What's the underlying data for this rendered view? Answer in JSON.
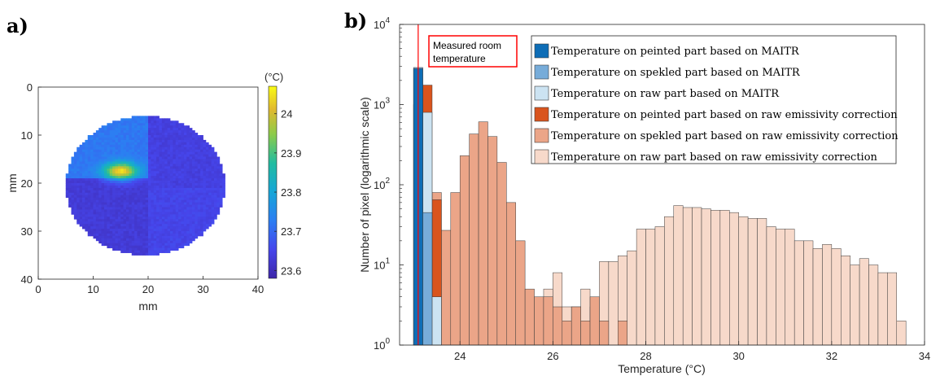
{
  "chart_data": [
    {
      "panel_label": "a)",
      "type": "heatmap",
      "xlabel": "mm",
      "ylabel": "mm",
      "xlim": [
        0,
        40
      ],
      "ylim": [
        0,
        40
      ],
      "y_reversed": true,
      "x_ticks": [
        0,
        10,
        20,
        30,
        40
      ],
      "y_ticks": [
        0,
        10,
        20,
        30,
        40
      ],
      "colorbar": {
        "unit": "(°C)",
        "range": [
          23.58,
          24.07
        ],
        "ticks": [
          23.6,
          23.7,
          23.8,
          23.9,
          24
        ],
        "tick_labels": [
          "23.6",
          "23.7",
          "23.8",
          "23.9",
          "24"
        ],
        "colormap": "parula"
      },
      "specimen": {
        "shape": "circle",
        "center_mm": [
          19.5,
          20.5
        ],
        "radius_mm": 14.5,
        "regions": [
          {
            "name": "top-left quadrant",
            "x_mm": [
              5,
              20
            ],
            "y_mm": [
              6,
              19
            ],
            "mean_temp": 23.72
          },
          {
            "name": "top-right quadrant",
            "x_mm": [
              20,
              34
            ],
            "y_mm": [
              6,
              21
            ],
            "mean_temp": 23.64
          },
          {
            "name": "bottom-left quadrant",
            "x_mm": [
              5,
              20
            ],
            "y_mm": [
              19,
              35
            ],
            "mean_temp": 23.63
          },
          {
            "name": "bottom-right quadrant",
            "x_mm": [
              20,
              34
            ],
            "y_mm": [
              21,
              35
            ],
            "mean_temp": 23.65
          }
        ],
        "hotspot": {
          "center_mm": [
            15,
            17.5
          ],
          "peak_temp": 24.05
        }
      }
    },
    {
      "panel_label": "b)",
      "type": "bar",
      "subtype": "histogram",
      "xlabel": "Temperature (°C)",
      "ylabel": "Number of pixel (logarithmic scale)",
      "xlim": [
        22.7,
        34
      ],
      "ylim": [
        1,
        10000
      ],
      "y_scale": "log",
      "x_ticks": [
        24,
        26,
        28,
        30,
        32,
        34
      ],
      "y_tick_labels": [
        "10^0",
        "10^1",
        "10^2",
        "10^3",
        "10^4"
      ],
      "bin_width": 0.2,
      "annotation": {
        "text": [
          "Measured room",
          "temperature"
        ],
        "x": 23.1
      },
      "series": [
        {
          "name": "Temperature on peinted part based on MAITR",
          "color": "#0e6db6",
          "bins": [
            [
              23.0,
              2800
            ]
          ]
        },
        {
          "name": "Temperature on spekled part based on MAITR",
          "color": "#77acd9",
          "bins": [
            [
              23.0,
              2900
            ],
            [
              23.2,
              45
            ]
          ]
        },
        {
          "name": "Temperature on raw part based on MAITR",
          "color": "#cce3f2",
          "bins": [
            [
              23.0,
              1000
            ],
            [
              23.2,
              800
            ],
            [
              23.4,
              4
            ]
          ]
        },
        {
          "name": "Temperature on peinted part based on raw emissivity correction",
          "color": "#d9541d",
          "bins": [
            [
              23.2,
              1750
            ],
            [
              23.4,
              65
            ]
          ]
        },
        {
          "name": "Temperature on spekled part based on raw emissivity correction",
          "color": "#eba588",
          "bins": [
            [
              23.4,
              80
            ],
            [
              23.6,
              27
            ],
            [
              23.8,
              80
            ],
            [
              24.0,
              230
            ],
            [
              24.2,
              430
            ],
            [
              24.4,
              610
            ],
            [
              24.6,
              400
            ],
            [
              24.8,
              190
            ],
            [
              25.0,
              60
            ],
            [
              25.2,
              20
            ],
            [
              25.4,
              5
            ],
            [
              25.6,
              4
            ],
            [
              25.8,
              4
            ],
            [
              26.0,
              3
            ],
            [
              26.2,
              2
            ],
            [
              26.4,
              3
            ],
            [
              26.6,
              2
            ],
            [
              26.8,
              4
            ],
            [
              27.0,
              2
            ],
            [
              27.4,
              2
            ]
          ]
        },
        {
          "name": "Temperature on raw part based on raw emissivity correction",
          "color": "#f7d9ca",
          "bins": [
            [
              25.8,
              5
            ],
            [
              26.0,
              8
            ],
            [
              26.2,
              3
            ],
            [
              26.4,
              3
            ],
            [
              26.6,
              5
            ],
            [
              26.8,
              3
            ],
            [
              27.0,
              11
            ],
            [
              27.2,
              11
            ],
            [
              27.4,
              13
            ],
            [
              27.6,
              15
            ],
            [
              27.8,
              28
            ],
            [
              28.0,
              28
            ],
            [
              28.2,
              30
            ],
            [
              28.4,
              40
            ],
            [
              28.6,
              55
            ],
            [
              28.8,
              52
            ],
            [
              29.0,
              52
            ],
            [
              29.2,
              50
            ],
            [
              29.4,
              48
            ],
            [
              29.6,
              48
            ],
            [
              29.8,
              45
            ],
            [
              30.0,
              40
            ],
            [
              30.2,
              38
            ],
            [
              30.4,
              38
            ],
            [
              30.6,
              30
            ],
            [
              30.8,
              28
            ],
            [
              31.0,
              28
            ],
            [
              31.2,
              20
            ],
            [
              31.4,
              20
            ],
            [
              31.6,
              16
            ],
            [
              31.8,
              18
            ],
            [
              32.0,
              16
            ],
            [
              32.2,
              13
            ],
            [
              32.4,
              10
            ],
            [
              32.6,
              12
            ],
            [
              32.8,
              10
            ],
            [
              33.0,
              8
            ],
            [
              33.2,
              8
            ],
            [
              33.4,
              2
            ]
          ]
        }
      ],
      "room_temperature_line": {
        "x": 23.1,
        "color": "#ff0000"
      }
    }
  ]
}
